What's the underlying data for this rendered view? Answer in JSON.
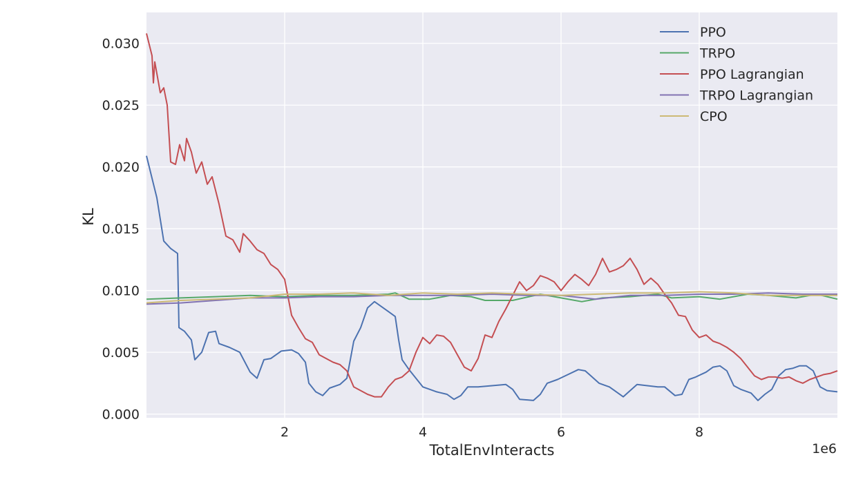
{
  "chart_data": {
    "type": "line",
    "xlabel": "TotalEnvInteracts",
    "ylabel": "KL",
    "x_offset_text": "1e6",
    "xlim": [
      0,
      10000000
    ],
    "ylim": [
      -0.0003,
      0.0325
    ],
    "xticks": [
      2000000,
      4000000,
      6000000,
      8000000
    ],
    "xtick_labels": [
      "2",
      "4",
      "6",
      "8"
    ],
    "yticks": [
      0.0,
      0.005,
      0.01,
      0.015,
      0.02,
      0.025,
      0.03
    ],
    "ytick_labels": [
      "0.000",
      "0.005",
      "0.010",
      "0.015",
      "0.020",
      "0.025",
      "0.030"
    ],
    "grid": true,
    "legend_position": "top-right",
    "series": [
      {
        "name": "PPO",
        "color": "#4c72b0",
        "points": [
          [
            0,
            0.0209
          ],
          [
            150000,
            0.0175
          ],
          [
            250000,
            0.014
          ],
          [
            350000,
            0.0134
          ],
          [
            450000,
            0.013
          ],
          [
            470000,
            0.007
          ],
          [
            550000,
            0.0067
          ],
          [
            650000,
            0.006
          ],
          [
            700000,
            0.0044
          ],
          [
            800000,
            0.005
          ],
          [
            900000,
            0.0066
          ],
          [
            1000000,
            0.0067
          ],
          [
            1050000,
            0.0057
          ],
          [
            1200000,
            0.0054
          ],
          [
            1350000,
            0.005
          ],
          [
            1500000,
            0.0034
          ],
          [
            1600000,
            0.0029
          ],
          [
            1700000,
            0.0044
          ],
          [
            1800000,
            0.0045
          ],
          [
            1950000,
            0.0051
          ],
          [
            2100000,
            0.0052
          ],
          [
            2200000,
            0.0049
          ],
          [
            2300000,
            0.0042
          ],
          [
            2350000,
            0.0025
          ],
          [
            2450000,
            0.0018
          ],
          [
            2550000,
            0.0015
          ],
          [
            2650000,
            0.0021
          ],
          [
            2800000,
            0.0024
          ],
          [
            2900000,
            0.0029
          ],
          [
            3000000,
            0.0059
          ],
          [
            3100000,
            0.007
          ],
          [
            3200000,
            0.0086
          ],
          [
            3300000,
            0.0091
          ],
          [
            3400000,
            0.0087
          ],
          [
            3500000,
            0.0083
          ],
          [
            3600000,
            0.0079
          ],
          [
            3650000,
            0.006
          ],
          [
            3700000,
            0.0044
          ],
          [
            3800000,
            0.0036
          ],
          [
            3900000,
            0.0029
          ],
          [
            4000000,
            0.0022
          ],
          [
            4100000,
            0.002
          ],
          [
            4200000,
            0.0018
          ],
          [
            4350000,
            0.0016
          ],
          [
            4450000,
            0.0012
          ],
          [
            4550000,
            0.0015
          ],
          [
            4650000,
            0.0022
          ],
          [
            4800000,
            0.0022
          ],
          [
            5000000,
            0.0023
          ],
          [
            5200000,
            0.0024
          ],
          [
            5300000,
            0.002
          ],
          [
            5400000,
            0.0012
          ],
          [
            5600000,
            0.0011
          ],
          [
            5700000,
            0.0016
          ],
          [
            5800000,
            0.0025
          ],
          [
            5950000,
            0.0028
          ],
          [
            6100000,
            0.0032
          ],
          [
            6250000,
            0.0036
          ],
          [
            6350000,
            0.0035
          ],
          [
            6450000,
            0.003
          ],
          [
            6550000,
            0.0025
          ],
          [
            6700000,
            0.0022
          ],
          [
            6800000,
            0.0018
          ],
          [
            6900000,
            0.0014
          ],
          [
            7000000,
            0.0019
          ],
          [
            7100000,
            0.0024
          ],
          [
            7250000,
            0.0023
          ],
          [
            7400000,
            0.0022
          ],
          [
            7500000,
            0.0022
          ],
          [
            7650000,
            0.0015
          ],
          [
            7750000,
            0.0016
          ],
          [
            7850000,
            0.0028
          ],
          [
            7950000,
            0.003
          ],
          [
            8100000,
            0.0034
          ],
          [
            8200000,
            0.0038
          ],
          [
            8300000,
            0.0039
          ],
          [
            8400000,
            0.0035
          ],
          [
            8500000,
            0.0023
          ],
          [
            8600000,
            0.002
          ],
          [
            8750000,
            0.0017
          ],
          [
            8850000,
            0.0011
          ],
          [
            8950000,
            0.0016
          ],
          [
            9050000,
            0.002
          ],
          [
            9150000,
            0.0031
          ],
          [
            9250000,
            0.0036
          ],
          [
            9350000,
            0.0037
          ],
          [
            9450000,
            0.0039
          ],
          [
            9550000,
            0.0039
          ],
          [
            9650000,
            0.0035
          ],
          [
            9750000,
            0.0022
          ],
          [
            9850000,
            0.0019
          ],
          [
            10000000,
            0.0018
          ]
        ]
      },
      {
        "name": "TRPO",
        "color": "#55a868",
        "points": [
          [
            0,
            0.0093
          ],
          [
            500000,
            0.0094
          ],
          [
            1000000,
            0.0095
          ],
          [
            1500000,
            0.0096
          ],
          [
            2000000,
            0.0095
          ],
          [
            2500000,
            0.0096
          ],
          [
            3000000,
            0.0096
          ],
          [
            3500000,
            0.0097
          ],
          [
            3600000,
            0.0098
          ],
          [
            3800000,
            0.0093
          ],
          [
            4100000,
            0.0093
          ],
          [
            4400000,
            0.0096
          ],
          [
            4700000,
            0.0095
          ],
          [
            4900000,
            0.0092
          ],
          [
            5300000,
            0.0092
          ],
          [
            5700000,
            0.0097
          ],
          [
            6000000,
            0.0094
          ],
          [
            6300000,
            0.0091
          ],
          [
            6600000,
            0.0094
          ],
          [
            7000000,
            0.0095
          ],
          [
            7400000,
            0.0097
          ],
          [
            7600000,
            0.0094
          ],
          [
            8000000,
            0.0095
          ],
          [
            8300000,
            0.0093
          ],
          [
            8700000,
            0.0097
          ],
          [
            9000000,
            0.0096
          ],
          [
            9400000,
            0.0094
          ],
          [
            9700000,
            0.0097
          ],
          [
            10000000,
            0.0093
          ]
        ]
      },
      {
        "name": "PPO Lagrangian",
        "color": "#c44e52",
        "points": [
          [
            0,
            0.0308
          ],
          [
            80000,
            0.029
          ],
          [
            100000,
            0.0268
          ],
          [
            120000,
            0.0285
          ],
          [
            200000,
            0.026
          ],
          [
            250000,
            0.0264
          ],
          [
            300000,
            0.025
          ],
          [
            350000,
            0.0204
          ],
          [
            420000,
            0.0202
          ],
          [
            480000,
            0.0218
          ],
          [
            550000,
            0.0205
          ],
          [
            580000,
            0.0223
          ],
          [
            650000,
            0.0212
          ],
          [
            720000,
            0.0195
          ],
          [
            800000,
            0.0204
          ],
          [
            880000,
            0.0186
          ],
          [
            950000,
            0.0192
          ],
          [
            1050000,
            0.017
          ],
          [
            1150000,
            0.0144
          ],
          [
            1250000,
            0.0141
          ],
          [
            1350000,
            0.0131
          ],
          [
            1400000,
            0.0146
          ],
          [
            1500000,
            0.014
          ],
          [
            1600000,
            0.0133
          ],
          [
            1700000,
            0.013
          ],
          [
            1800000,
            0.0121
          ],
          [
            1900000,
            0.0117
          ],
          [
            2000000,
            0.0109
          ],
          [
            2100000,
            0.008
          ],
          [
            2200000,
            0.007
          ],
          [
            2300000,
            0.0061
          ],
          [
            2400000,
            0.0058
          ],
          [
            2500000,
            0.0048
          ],
          [
            2600000,
            0.0045
          ],
          [
            2700000,
            0.0042
          ],
          [
            2800000,
            0.004
          ],
          [
            2900000,
            0.0035
          ],
          [
            3000000,
            0.0022
          ],
          [
            3100000,
            0.0019
          ],
          [
            3200000,
            0.0016
          ],
          [
            3300000,
            0.0014
          ],
          [
            3400000,
            0.0014
          ],
          [
            3500000,
            0.0022
          ],
          [
            3600000,
            0.0028
          ],
          [
            3700000,
            0.003
          ],
          [
            3800000,
            0.0035
          ],
          [
            3900000,
            0.005
          ],
          [
            4000000,
            0.0062
          ],
          [
            4100000,
            0.0057
          ],
          [
            4200000,
            0.0064
          ],
          [
            4300000,
            0.0063
          ],
          [
            4400000,
            0.0058
          ],
          [
            4500000,
            0.0048
          ],
          [
            4600000,
            0.0038
          ],
          [
            4700000,
            0.0035
          ],
          [
            4800000,
            0.0045
          ],
          [
            4900000,
            0.0064
          ],
          [
            5000000,
            0.0062
          ],
          [
            5100000,
            0.0075
          ],
          [
            5200000,
            0.0085
          ],
          [
            5300000,
            0.0096
          ],
          [
            5400000,
            0.0107
          ],
          [
            5500000,
            0.01
          ],
          [
            5600000,
            0.0104
          ],
          [
            5700000,
            0.0112
          ],
          [
            5800000,
            0.011
          ],
          [
            5900000,
            0.0107
          ],
          [
            6000000,
            0.01
          ],
          [
            6100000,
            0.0107
          ],
          [
            6200000,
            0.0113
          ],
          [
            6300000,
            0.0109
          ],
          [
            6400000,
            0.0104
          ],
          [
            6500000,
            0.0113
          ],
          [
            6600000,
            0.0126
          ],
          [
            6700000,
            0.0115
          ],
          [
            6800000,
            0.0117
          ],
          [
            6900000,
            0.012
          ],
          [
            7000000,
            0.0126
          ],
          [
            7100000,
            0.0117
          ],
          [
            7200000,
            0.0105
          ],
          [
            7300000,
            0.011
          ],
          [
            7400000,
            0.0105
          ],
          [
            7500000,
            0.0097
          ],
          [
            7600000,
            0.009
          ],
          [
            7700000,
            0.008
          ],
          [
            7800000,
            0.0079
          ],
          [
            7900000,
            0.0068
          ],
          [
            8000000,
            0.0062
          ],
          [
            8100000,
            0.0064
          ],
          [
            8200000,
            0.0059
          ],
          [
            8300000,
            0.0057
          ],
          [
            8400000,
            0.0054
          ],
          [
            8500000,
            0.005
          ],
          [
            8600000,
            0.0045
          ],
          [
            8700000,
            0.0038
          ],
          [
            8800000,
            0.0031
          ],
          [
            8900000,
            0.0028
          ],
          [
            9000000,
            0.003
          ],
          [
            9100000,
            0.003
          ],
          [
            9200000,
            0.0029
          ],
          [
            9300000,
            0.003
          ],
          [
            9400000,
            0.0027
          ],
          [
            9500000,
            0.0025
          ],
          [
            9600000,
            0.0028
          ],
          [
            9700000,
            0.003
          ],
          [
            9800000,
            0.0032
          ],
          [
            9900000,
            0.0033
          ],
          [
            10000000,
            0.0035
          ]
        ]
      },
      {
        "name": "TRPO Lagrangian",
        "color": "#8172b2",
        "points": [
          [
            0,
            0.0089
          ],
          [
            500000,
            0.009
          ],
          [
            1000000,
            0.0092
          ],
          [
            1500000,
            0.0094
          ],
          [
            2000000,
            0.0094
          ],
          [
            2500000,
            0.0095
          ],
          [
            3000000,
            0.0095
          ],
          [
            3500000,
            0.0096
          ],
          [
            4000000,
            0.0096
          ],
          [
            4500000,
            0.0096
          ],
          [
            5000000,
            0.0097
          ],
          [
            5500000,
            0.0096
          ],
          [
            6000000,
            0.0096
          ],
          [
            6500000,
            0.0093
          ],
          [
            7000000,
            0.0096
          ],
          [
            7500000,
            0.0096
          ],
          [
            8000000,
            0.0097
          ],
          [
            8500000,
            0.0097
          ],
          [
            9000000,
            0.0098
          ],
          [
            9500000,
            0.0097
          ],
          [
            10000000,
            0.0097
          ]
        ]
      },
      {
        "name": "CPO",
        "color": "#ccb974",
        "points": [
          [
            0,
            0.009
          ],
          [
            500000,
            0.0092
          ],
          [
            1000000,
            0.0093
          ],
          [
            1500000,
            0.0094
          ],
          [
            2000000,
            0.0097
          ],
          [
            2500000,
            0.0097
          ],
          [
            3000000,
            0.0098
          ],
          [
            3500000,
            0.0096
          ],
          [
            4000000,
            0.0098
          ],
          [
            4500000,
            0.0097
          ],
          [
            5000000,
            0.0098
          ],
          [
            5500000,
            0.0097
          ],
          [
            6000000,
            0.0096
          ],
          [
            6500000,
            0.0097
          ],
          [
            7000000,
            0.0098
          ],
          [
            7500000,
            0.0098
          ],
          [
            8000000,
            0.0099
          ],
          [
            8500000,
            0.0098
          ],
          [
            9000000,
            0.0096
          ],
          [
            9500000,
            0.0096
          ],
          [
            10000000,
            0.0096
          ]
        ]
      }
    ]
  }
}
